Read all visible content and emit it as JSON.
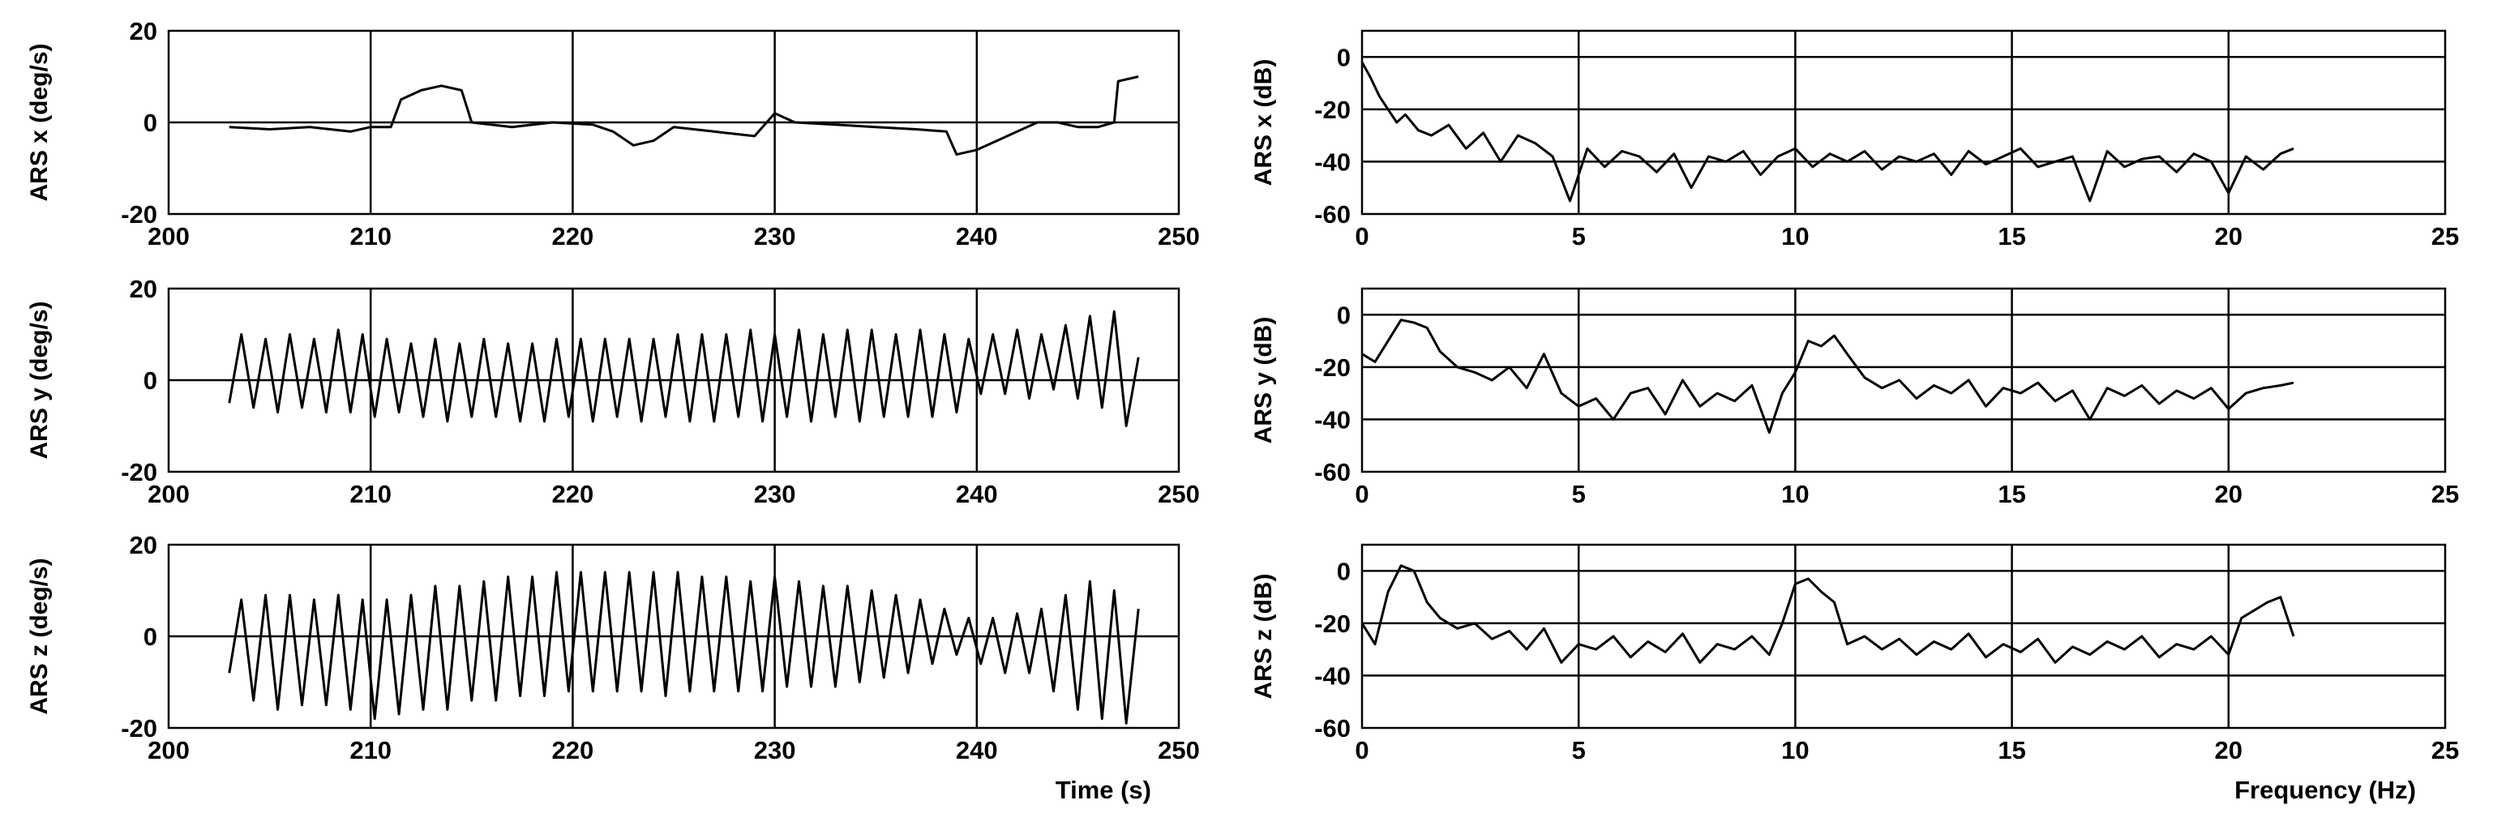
{
  "figure": {
    "time_axis_label": "Time (s)",
    "frequency_axis_label": "Frequency (Hz)"
  },
  "chart_data": [
    {
      "id": "ars-x-time",
      "type": "line",
      "title": "",
      "xlabel": "",
      "ylabel": "ARS x (deg/s)",
      "xlim": [
        200,
        250
      ],
      "ylim": [
        -20,
        20
      ],
      "xticks": [
        200,
        210,
        220,
        230,
        240,
        250
      ],
      "yticks": [
        -20,
        0,
        20
      ],
      "grid": true,
      "series": [
        {
          "x": [
            203,
            205,
            207,
            209,
            210,
            211,
            211.5,
            212.5,
            213.5,
            214.5,
            215,
            217,
            219,
            221,
            222,
            223,
            224,
            225,
            227,
            229,
            230,
            231,
            233,
            235,
            237,
            238.5,
            239,
            240,
            241,
            242,
            243,
            244,
            245,
            246,
            246.8,
            247,
            248
          ],
          "y": [
            -1,
            -1.5,
            -1,
            -2,
            -1,
            -1,
            5,
            7,
            8,
            7,
            0,
            -1,
            0,
            -0.5,
            -2,
            -5,
            -4,
            -1,
            -2,
            -3,
            2,
            0,
            -0.5,
            -1,
            -1.5,
            -2,
            -7,
            -6,
            -4,
            -2,
            0,
            0,
            -1,
            -1,
            0,
            9,
            10
          ]
        }
      ]
    },
    {
      "id": "ars-y-time",
      "type": "line",
      "title": "",
      "xlabel": "",
      "ylabel": "ARS y (deg/s)",
      "xlim": [
        200,
        250
      ],
      "ylim": [
        -20,
        20
      ],
      "xticks": [
        200,
        210,
        220,
        230,
        240,
        250
      ],
      "yticks": [
        -20,
        0,
        20
      ],
      "grid": true,
      "series": [
        {
          "x": [
            203,
            203.6,
            204.2,
            204.8,
            205.4,
            206,
            206.6,
            207.2,
            207.8,
            208.4,
            209,
            209.6,
            210.2,
            210.8,
            211.4,
            212,
            212.6,
            213.2,
            213.8,
            214.4,
            215,
            215.6,
            216.2,
            216.8,
            217.4,
            218,
            218.6,
            219.2,
            219.8,
            220.4,
            221,
            221.6,
            222.2,
            222.8,
            223.4,
            224,
            224.6,
            225.2,
            225.8,
            226.4,
            227,
            227.6,
            228.2,
            228.8,
            229.4,
            230,
            230.6,
            231.2,
            231.8,
            232.4,
            233,
            233.6,
            234.2,
            234.8,
            235.4,
            236,
            236.6,
            237.2,
            237.8,
            238.4,
            239,
            239.6,
            240.2,
            240.8,
            241.4,
            242,
            242.6,
            243.2,
            243.8,
            244.4,
            245,
            245.6,
            246.2,
            246.8,
            247.4,
            248
          ],
          "y": [
            -5,
            10,
            -6,
            9,
            -7,
            10,
            -6,
            9,
            -7,
            11,
            -7,
            10,
            -8,
            9,
            -7,
            8,
            -8,
            9,
            -9,
            8,
            -8,
            9,
            -8,
            8,
            -9,
            8,
            -9,
            9,
            -8,
            9,
            -9,
            9,
            -8,
            9,
            -9,
            9,
            -8,
            10,
            -9,
            10,
            -9,
            10,
            -8,
            11,
            -9,
            10,
            -8,
            11,
            -9,
            10,
            -8,
            11,
            -9,
            11,
            -8,
            10,
            -8,
            11,
            -8,
            10,
            -7,
            9,
            -3,
            10,
            -3,
            11,
            -4,
            10,
            -2,
            12,
            -4,
            14,
            -6,
            15,
            -10,
            5
          ]
        }
      ]
    },
    {
      "id": "ars-z-time",
      "type": "line",
      "title": "",
      "xlabel": "Time (s)",
      "ylabel": "ARS z (deg/s)",
      "xlim": [
        200,
        250
      ],
      "ylim": [
        -20,
        20
      ],
      "xticks": [
        200,
        210,
        220,
        230,
        240,
        250
      ],
      "yticks": [
        -20,
        0,
        20
      ],
      "grid": true,
      "series": [
        {
          "x": [
            203,
            203.6,
            204.2,
            204.8,
            205.4,
            206,
            206.6,
            207.2,
            207.8,
            208.4,
            209,
            209.6,
            210.2,
            210.8,
            211.4,
            212,
            212.6,
            213.2,
            213.8,
            214.4,
            215,
            215.6,
            216.2,
            216.8,
            217.4,
            218,
            218.6,
            219.2,
            219.8,
            220.4,
            221,
            221.6,
            222.2,
            222.8,
            223.4,
            224,
            224.6,
            225.2,
            225.8,
            226.4,
            227,
            227.6,
            228.2,
            228.8,
            229.4,
            230,
            230.6,
            231.2,
            231.8,
            232.4,
            233,
            233.6,
            234.2,
            234.8,
            235.4,
            236,
            236.6,
            237.2,
            237.8,
            238.4,
            239,
            239.6,
            240.2,
            240.8,
            241.4,
            242,
            242.6,
            243.2,
            243.8,
            244.4,
            245,
            245.6,
            246.2,
            246.8,
            247.4,
            248
          ],
          "y": [
            -8,
            8,
            -14,
            9,
            -16,
            9,
            -15,
            8,
            -15,
            9,
            -16,
            8,
            -18,
            8,
            -17,
            9,
            -16,
            11,
            -16,
            11,
            -14,
            12,
            -14,
            13,
            -13,
            13,
            -13,
            14,
            -12,
            14,
            -12,
            14,
            -12,
            14,
            -12,
            14,
            -13,
            14,
            -12,
            13,
            -12,
            13,
            -12,
            12,
            -12,
            13,
            -11,
            12,
            -11,
            11,
            -11,
            11,
            -10,
            10,
            -9,
            9,
            -8,
            8,
            -6,
            6,
            -4,
            4,
            -6,
            4,
            -8,
            5,
            -8,
            6,
            -12,
            9,
            -16,
            12,
            -18,
            10,
            -19,
            6
          ]
        }
      ]
    },
    {
      "id": "ars-x-spectrum",
      "type": "line",
      "title": "",
      "xlabel": "",
      "ylabel": "ARS x (dB)",
      "xlim": [
        0,
        25
      ],
      "ylim": [
        -60,
        10
      ],
      "xticks": [
        0,
        5,
        10,
        15,
        20,
        25
      ],
      "yticks": [
        -60,
        -40,
        -20,
        0
      ],
      "grid": true,
      "series": [
        {
          "x": [
            0,
            0.2,
            0.4,
            0.6,
            0.8,
            1.0,
            1.3,
            1.6,
            2.0,
            2.4,
            2.8,
            3.2,
            3.6,
            4.0,
            4.4,
            4.8,
            5.2,
            5.6,
            6.0,
            6.4,
            6.8,
            7.2,
            7.6,
            8.0,
            8.4,
            8.8,
            9.2,
            9.6,
            10.0,
            10.4,
            10.8,
            11.2,
            11.6,
            12.0,
            12.4,
            12.8,
            13.2,
            13.6,
            14.0,
            14.4,
            14.8,
            15.2,
            15.6,
            16.0,
            16.4,
            16.8,
            17.2,
            17.6,
            18.0,
            18.4,
            18.8,
            19.2,
            19.6,
            20.0,
            20.4,
            20.8,
            21.2,
            21.5
          ],
          "y": [
            -2,
            -8,
            -15,
            -20,
            -25,
            -22,
            -28,
            -30,
            -26,
            -35,
            -29,
            -40,
            -30,
            -33,
            -38,
            -55,
            -35,
            -42,
            -36,
            -38,
            -44,
            -37,
            -50,
            -38,
            -40,
            -36,
            -45,
            -38,
            -35,
            -42,
            -37,
            -40,
            -36,
            -43,
            -38,
            -40,
            -37,
            -45,
            -36,
            -41,
            -38,
            -35,
            -42,
            -40,
            -38,
            -55,
            -36,
            -42,
            -39,
            -38,
            -44,
            -37,
            -40,
            -52,
            -38,
            -43,
            -37,
            -35
          ]
        }
      ]
    },
    {
      "id": "ars-y-spectrum",
      "type": "line",
      "title": "",
      "xlabel": "",
      "ylabel": "ARS y (dB)",
      "xlim": [
        0,
        25
      ],
      "ylim": [
        -60,
        10
      ],
      "xticks": [
        0,
        5,
        10,
        15,
        20,
        25
      ],
      "yticks": [
        -60,
        -40,
        -20,
        0
      ],
      "grid": true,
      "series": [
        {
          "x": [
            0,
            0.3,
            0.6,
            0.9,
            1.2,
            1.5,
            1.8,
            2.2,
            2.6,
            3.0,
            3.4,
            3.8,
            4.2,
            4.6,
            5.0,
            5.4,
            5.8,
            6.2,
            6.6,
            7.0,
            7.4,
            7.8,
            8.2,
            8.6,
            9.0,
            9.4,
            9.7,
            10.0,
            10.3,
            10.6,
            10.9,
            11.2,
            11.6,
            12.0,
            12.4,
            12.8,
            13.2,
            13.6,
            14.0,
            14.4,
            14.8,
            15.2,
            15.6,
            16.0,
            16.4,
            16.8,
            17.2,
            17.6,
            18.0,
            18.4,
            18.8,
            19.2,
            19.6,
            20.0,
            20.4,
            20.8,
            21.2,
            21.5
          ],
          "y": [
            -15,
            -18,
            -10,
            -2,
            -3,
            -5,
            -14,
            -20,
            -22,
            -25,
            -20,
            -28,
            -15,
            -30,
            -35,
            -32,
            -40,
            -30,
            -28,
            -38,
            -25,
            -35,
            -30,
            -33,
            -27,
            -45,
            -30,
            -22,
            -10,
            -12,
            -8,
            -15,
            -24,
            -28,
            -25,
            -32,
            -27,
            -30,
            -25,
            -35,
            -28,
            -30,
            -26,
            -33,
            -29,
            -40,
            -28,
            -31,
            -27,
            -34,
            -29,
            -32,
            -28,
            -36,
            -30,
            -28,
            -27,
            -26
          ]
        }
      ]
    },
    {
      "id": "ars-z-spectrum",
      "type": "line",
      "title": "",
      "xlabel": "Frequency (Hz)",
      "ylabel": "ARS z (dB)",
      "xlim": [
        0,
        25
      ],
      "ylim": [
        -60,
        10
      ],
      "xticks": [
        0,
        5,
        10,
        15,
        20,
        25
      ],
      "yticks": [
        -60,
        -40,
        -20,
        0
      ],
      "grid": true,
      "series": [
        {
          "x": [
            0,
            0.3,
            0.6,
            0.9,
            1.2,
            1.5,
            1.8,
            2.2,
            2.6,
            3.0,
            3.4,
            3.8,
            4.2,
            4.6,
            5.0,
            5.4,
            5.8,
            6.2,
            6.6,
            7.0,
            7.4,
            7.8,
            8.2,
            8.6,
            9.0,
            9.4,
            9.7,
            10.0,
            10.3,
            10.6,
            10.9,
            11.2,
            11.6,
            12.0,
            12.4,
            12.8,
            13.2,
            13.6,
            14.0,
            14.4,
            14.8,
            15.2,
            15.6,
            16.0,
            16.4,
            16.8,
            17.2,
            17.6,
            18.0,
            18.4,
            18.8,
            19.2,
            19.6,
            20.0,
            20.3,
            20.6,
            20.9,
            21.2,
            21.5
          ],
          "y": [
            -20,
            -28,
            -8,
            2,
            0,
            -12,
            -18,
            -22,
            -20,
            -26,
            -23,
            -30,
            -22,
            -35,
            -28,
            -30,
            -25,
            -33,
            -27,
            -31,
            -24,
            -35,
            -28,
            -30,
            -25,
            -32,
            -20,
            -5,
            -3,
            -8,
            -12,
            -28,
            -25,
            -30,
            -26,
            -32,
            -27,
            -30,
            -24,
            -33,
            -28,
            -31,
            -26,
            -35,
            -29,
            -32,
            -27,
            -30,
            -25,
            -33,
            -28,
            -30,
            -25,
            -32,
            -18,
            -15,
            -12,
            -10,
            -25
          ]
        }
      ]
    }
  ]
}
